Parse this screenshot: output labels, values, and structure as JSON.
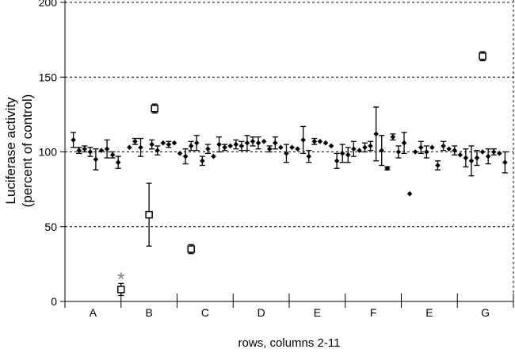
{
  "chart_data": {
    "type": "scatter",
    "xlabel": "rows, columns 2-11",
    "ylabel_lines": [
      "Luciferase activity",
      "(percent of control)"
    ],
    "ylim": [
      0,
      200
    ],
    "yticks": [
      0,
      50,
      100,
      150,
      200
    ],
    "grid": "horizontal dashed at 50, 100, 150, 200",
    "x_groups": [
      "A",
      "B",
      "C",
      "D",
      "E",
      "F",
      "E",
      "G"
    ],
    "annotation": {
      "text": "*",
      "x": 9.5,
      "y": 17
    },
    "series": [
      {
        "marker": "filled-diamond",
        "points": [
          {
            "x": 1,
            "y": 108,
            "err": 5
          },
          {
            "x": 2,
            "y": 101,
            "err": 2
          },
          {
            "x": 3,
            "y": 102,
            "err": 2
          },
          {
            "x": 4,
            "y": 100,
            "err": 3
          },
          {
            "x": 5,
            "y": 95,
            "err": 7
          },
          {
            "x": 6,
            "y": 101
          },
          {
            "x": 7,
            "y": 102,
            "err": 6
          },
          {
            "x": 8,
            "y": 98,
            "err": 2
          },
          {
            "x": 9,
            "y": 93,
            "err": 4
          },
          {
            "x": 11,
            "y": 103
          },
          {
            "x": 12,
            "y": 107,
            "err": 2
          },
          {
            "x": 13,
            "y": 103,
            "err": 6
          },
          {
            "x": 15,
            "y": 105,
            "err": 3
          },
          {
            "x": 16,
            "y": 101,
            "err": 3
          },
          {
            "x": 17,
            "y": 106
          },
          {
            "x": 18,
            "y": 105,
            "err": 2
          },
          {
            "x": 19,
            "y": 106
          },
          {
            "x": 20,
            "y": 99
          },
          {
            "x": 21,
            "y": 97,
            "err": 5
          },
          {
            "x": 22,
            "y": 104,
            "err": 3
          },
          {
            "x": 23,
            "y": 106,
            "err": 5
          },
          {
            "x": 24,
            "y": 94,
            "err": 3
          },
          {
            "x": 25,
            "y": 102,
            "err": 3
          },
          {
            "x": 26,
            "y": 97
          },
          {
            "x": 27,
            "y": 105,
            "err": 5
          },
          {
            "x": 28,
            "y": 103,
            "err": 2
          },
          {
            "x": 29,
            "y": 104
          },
          {
            "x": 30,
            "y": 105,
            "err": 3
          },
          {
            "x": 31,
            "y": 104,
            "err": 3
          },
          {
            "x": 32,
            "y": 106,
            "err": 5
          },
          {
            "x": 33,
            "y": 107,
            "err": 3
          },
          {
            "x": 34,
            "y": 106,
            "err": 4
          },
          {
            "x": 35,
            "y": 107
          },
          {
            "x": 36,
            "y": 102,
            "err": 2
          },
          {
            "x": 37,
            "y": 106,
            "err": 4
          },
          {
            "x": 38,
            "y": 103
          },
          {
            "x": 39,
            "y": 99,
            "err": 6
          },
          {
            "x": 40,
            "y": 103
          },
          {
            "x": 41,
            "y": 102
          },
          {
            "x": 42,
            "y": 108,
            "err": 9
          },
          {
            "x": 43,
            "y": 97,
            "err": 4
          },
          {
            "x": 44,
            "y": 107,
            "err": 2
          },
          {
            "x": 45,
            "y": 107
          },
          {
            "x": 46,
            "y": 106
          },
          {
            "x": 47,
            "y": 104
          },
          {
            "x": 48,
            "y": 94,
            "err": 5
          },
          {
            "x": 49,
            "y": 99,
            "err": 6
          },
          {
            "x": 50,
            "y": 98,
            "err": 5
          },
          {
            "x": 51,
            "y": 102,
            "err": 5
          },
          {
            "x": 52,
            "y": 101
          },
          {
            "x": 53,
            "y": 103,
            "err": 3
          },
          {
            "x": 54,
            "y": 104,
            "err": 3
          },
          {
            "x": 55,
            "y": 112,
            "err": 18
          },
          {
            "x": 56,
            "y": 101,
            "err": 10
          },
          {
            "x": 57,
            "y": 89,
            "err": 1
          },
          {
            "x": 58,
            "y": 110,
            "err": 2
          },
          {
            "x": 59,
            "y": 100,
            "err": 4
          },
          {
            "x": 60,
            "y": 106,
            "err": 7
          },
          {
            "x": 61,
            "y": 72
          },
          {
            "x": 62,
            "y": 100
          },
          {
            "x": 63,
            "y": 103,
            "err": 4
          },
          {
            "x": 64,
            "y": 100,
            "err": 4
          },
          {
            "x": 65,
            "y": 103
          },
          {
            "x": 66,
            "y": 91,
            "err": 3
          },
          {
            "x": 67,
            "y": 104,
            "err": 3
          },
          {
            "x": 68,
            "y": 102
          },
          {
            "x": 69,
            "y": 101,
            "err": 3
          },
          {
            "x": 70,
            "y": 98
          },
          {
            "x": 71,
            "y": 96,
            "err": 6
          },
          {
            "x": 72,
            "y": 94,
            "err": 10
          },
          {
            "x": 73,
            "y": 96,
            "err": 5
          },
          {
            "x": 74,
            "y": 100
          },
          {
            "x": 75,
            "y": 97,
            "err": 5
          },
          {
            "x": 76,
            "y": 100,
            "err": 2
          },
          {
            "x": 77,
            "y": 99
          },
          {
            "x": 78,
            "y": 93,
            "err": 7
          }
        ]
      },
      {
        "marker": "open-square",
        "points": [
          {
            "x": 9.5,
            "y": 8,
            "err": 4
          },
          {
            "x": 14.5,
            "y": 58,
            "err": 21
          },
          {
            "x": 15.5,
            "y": 129,
            "err": 3
          },
          {
            "x": 22,
            "y": 35,
            "err": 3
          },
          {
            "x": 74,
            "y": 164,
            "err": 3
          }
        ]
      }
    ]
  }
}
